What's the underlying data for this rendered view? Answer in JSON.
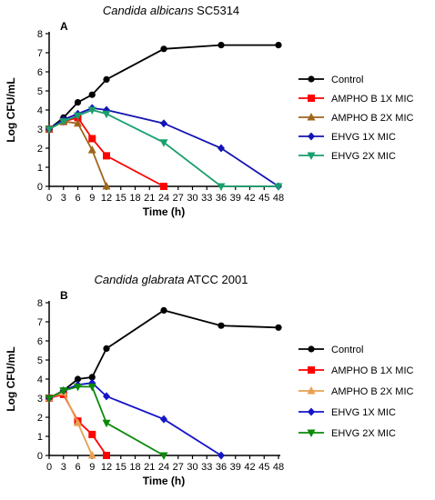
{
  "chart_data": [
    {
      "type": "line",
      "panel_letter": "A",
      "title_species": "Candida albicans",
      "title_strain": "SC5314",
      "xlabel": "Time (h)",
      "ylabel": "Log CFU/mL",
      "xlim": [
        0,
        48
      ],
      "ylim": [
        0,
        8
      ],
      "xticks": [
        "0",
        "3",
        "6",
        "9",
        "12",
        "15",
        "18",
        "21",
        "24",
        "27",
        "30",
        "33",
        "36",
        "39",
        "42",
        "45",
        "48"
      ],
      "yticks": [
        "0",
        "1",
        "2",
        "3",
        "4",
        "5",
        "6",
        "7",
        "8"
      ],
      "legend_position": "right",
      "series": [
        {
          "name": "Control",
          "color": "#000000",
          "marker": "circle",
          "x": [
            0,
            3,
            6,
            9,
            12,
            24,
            36,
            48
          ],
          "y": [
            3.0,
            3.6,
            4.4,
            4.8,
            5.6,
            7.2,
            7.4,
            7.4
          ]
        },
        {
          "name": "AMPHO B 1X MIC",
          "color": "#ff0000",
          "marker": "square",
          "x": [
            0,
            3,
            6,
            9,
            12,
            24
          ],
          "y": [
            3.0,
            3.4,
            3.6,
            2.5,
            1.6,
            0.0
          ]
        },
        {
          "name": "AMPHO B 2X MIC",
          "color": "#a0651b",
          "marker": "triangle-up",
          "x": [
            0,
            3,
            6,
            9,
            12
          ],
          "y": [
            3.0,
            3.4,
            3.3,
            1.9,
            0.0
          ]
        },
        {
          "name": "EHVG 1X MIC",
          "color": "#1414b4",
          "marker": "diamond",
          "x": [
            0,
            3,
            6,
            9,
            12,
            24,
            36,
            48
          ],
          "y": [
            3.0,
            3.5,
            3.8,
            4.1,
            4.0,
            3.3,
            2.0,
            0.0
          ]
        },
        {
          "name": "EHVG 2X MIC",
          "color": "#1a9f6c",
          "marker": "triangle-down",
          "x": [
            0,
            3,
            6,
            9,
            12,
            24,
            36,
            48
          ],
          "y": [
            3.0,
            3.4,
            3.7,
            4.0,
            3.8,
            2.3,
            0.0,
            0.0
          ]
        }
      ]
    },
    {
      "type": "line",
      "panel_letter": "B",
      "title_species": "Candida glabrata",
      "title_strain": "ATCC 2001",
      "xlabel": "Time (h)",
      "ylabel": "Log CFU/mL",
      "xlim": [
        0,
        48
      ],
      "ylim": [
        0,
        8
      ],
      "xticks": [
        "0",
        "3",
        "6",
        "9",
        "12",
        "15",
        "18",
        "21",
        "24",
        "27",
        "30",
        "33",
        "36",
        "39",
        "42",
        "45",
        "48"
      ],
      "yticks": [
        "0",
        "1",
        "2",
        "3",
        "4",
        "5",
        "6",
        "7",
        "8"
      ],
      "legend_position": "right",
      "series": [
        {
          "name": "Control",
          "color": "#000000",
          "marker": "circle",
          "x": [
            0,
            3,
            6,
            9,
            12,
            24,
            36,
            48
          ],
          "y": [
            3.0,
            3.4,
            4.0,
            4.1,
            5.6,
            7.6,
            6.8,
            6.7
          ]
        },
        {
          "name": "AMPHO B 1X MIC",
          "color": "#ff0000",
          "marker": "square",
          "x": [
            0,
            3,
            6,
            9,
            12
          ],
          "y": [
            3.0,
            3.2,
            1.8,
            1.1,
            0.0
          ]
        },
        {
          "name": "AMPHO B 2X MIC",
          "color": "#e8a050",
          "marker": "triangle-up",
          "x": [
            0,
            3,
            6,
            9
          ],
          "y": [
            3.0,
            3.3,
            1.7,
            0.0
          ]
        },
        {
          "name": "EHVG 1X MIC",
          "color": "#1414c8",
          "marker": "diamond",
          "x": [
            0,
            3,
            6,
            9,
            12,
            24,
            36
          ],
          "y": [
            3.0,
            3.4,
            3.7,
            3.8,
            3.1,
            1.9,
            0.0
          ]
        },
        {
          "name": "EHVG 2X MIC",
          "color": "#0b8a0b",
          "marker": "triangle-down",
          "x": [
            0,
            3,
            6,
            9,
            12,
            24
          ],
          "y": [
            3.0,
            3.4,
            3.6,
            3.6,
            1.7,
            0.0
          ]
        }
      ]
    }
  ]
}
